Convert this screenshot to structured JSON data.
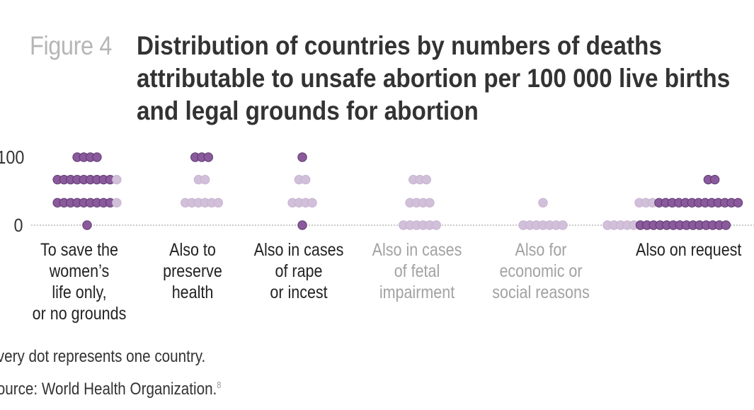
{
  "figure": {
    "label": "Figure 4",
    "title_lines": [
      "Distribution of countries by numbers of deaths",
      "attributable to unsafe abortion per 100 000 live births",
      "and legal grounds for abortion"
    ]
  },
  "notes": {
    "dot_note": "Every dot represents one country.",
    "source_text": "Source: World Health Organization.",
    "source_ref": "8"
  },
  "chart_data": {
    "type": "scatter",
    "title": "Distribution of countries by numbers of deaths attributable to unsafe abortion per 100 000 live births and legal grounds for abortion",
    "xlabel": "",
    "ylabel": "",
    "y_ticks": [
      "0",
      "100"
    ],
    "ylim": [
      0,
      100
    ],
    "grid": false,
    "dot_meaning": "Every dot represents one country.",
    "categories": [
      "To save the\nwomen’s\nlife only,\nor no grounds",
      "Also to\npreserve\nhealth",
      "Also in cases\nof rape\nor incest",
      "Also in cases\nof fetal\nimpairment",
      "Also for\neconomic or\nsocial reasons",
      "Also on request"
    ],
    "category_colors": [
      "#222222",
      "#222222",
      "#222222",
      "#a2a2a2",
      "#a2a2a2",
      "#222222"
    ],
    "series": [
      {
        "category": "To save the\nwomen’s\nlife only,\nor no grounds",
        "counts": [
          {
            "y": 0,
            "dark": 1,
            "light": 0
          },
          {
            "y": 33,
            "dark": 9,
            "light": 1
          },
          {
            "y": 67,
            "dark": 9,
            "light": 1
          },
          {
            "y": 100,
            "dark": 4,
            "light": 0
          }
        ]
      },
      {
        "category": "Also to\npreserve\nhealth",
        "counts": [
          {
            "y": 0,
            "dark": 0,
            "light": 0
          },
          {
            "y": 33,
            "dark": 0,
            "light": 6
          },
          {
            "y": 67,
            "dark": 0,
            "light": 2
          },
          {
            "y": 100,
            "dark": 3,
            "light": 0
          }
        ]
      },
      {
        "category": "Also in cases\nof rape\nor incest",
        "counts": [
          {
            "y": 0,
            "dark": 1,
            "light": 0
          },
          {
            "y": 33,
            "dark": 0,
            "light": 4
          },
          {
            "y": 67,
            "dark": 0,
            "light": 2
          },
          {
            "y": 100,
            "dark": 1,
            "light": 0
          }
        ]
      },
      {
        "category": "Also in cases\nof fetal\nimpairment",
        "counts": [
          {
            "y": 0,
            "dark": 0,
            "light": 6
          },
          {
            "y": 33,
            "dark": 0,
            "light": 4
          },
          {
            "y": 67,
            "dark": 0,
            "light": 3
          },
          {
            "y": 100,
            "dark": 0,
            "light": 0
          }
        ]
      },
      {
        "category": "Also for\neconomic or\nsocial reasons",
        "counts": [
          {
            "y": 0,
            "dark": 0,
            "light": 7
          },
          {
            "y": 33,
            "dark": 0,
            "light": 1
          },
          {
            "y": 67,
            "dark": 0,
            "light": 0
          },
          {
            "y": 100,
            "dark": 0,
            "light": 0
          }
        ]
      },
      {
        "category": "Also on request",
        "counts": [
          {
            "y": 0,
            "dark": 14,
            "light": 5
          },
          {
            "y": 33,
            "dark": 13,
            "light": 3
          },
          {
            "y": 67,
            "dark": 2,
            "light": 0
          },
          {
            "y": 100,
            "dark": 0,
            "light": 0
          }
        ]
      }
    ],
    "colors": {
      "dark_dot": "#8a5a9c",
      "light_dot": "#d2c0da",
      "axis_line": "#aaaaaa"
    }
  }
}
